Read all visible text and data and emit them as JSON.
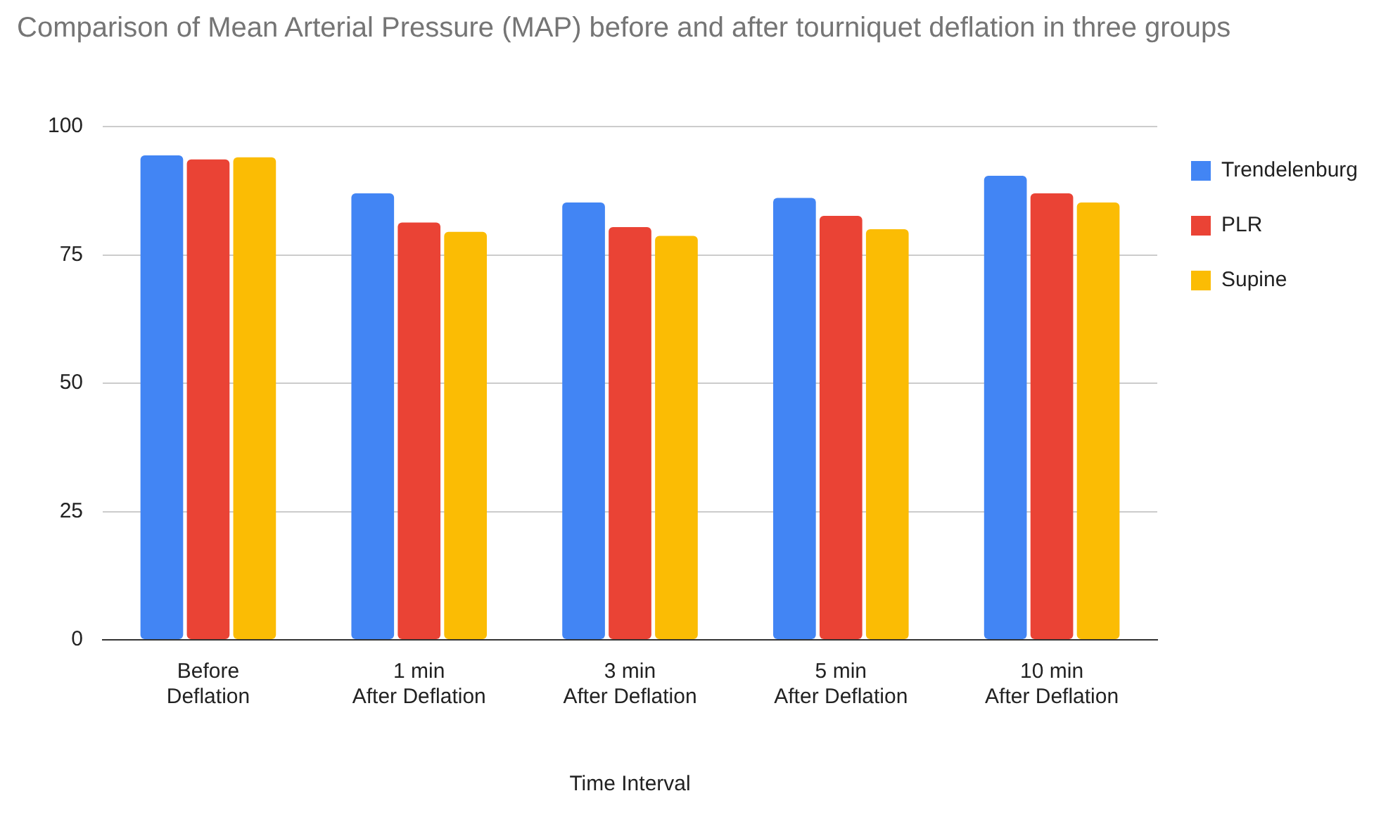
{
  "chart_data": {
    "type": "bar",
    "title": "Comparison of Mean Arterial Pressure (MAP) before and after tourniquet deflation in three groups",
    "xlabel": "Time Interval",
    "categories": [
      "Before Deflation",
      "1 min After Deflation",
      "3 min After Deflation",
      "5 min After Deflation",
      "10 min After Deflation"
    ],
    "series": [
      {
        "name": "Trendelenburg",
        "color": "#4285f4",
        "values": [
          94.4,
          87.0,
          85.2,
          86.1,
          90.4
        ]
      },
      {
        "name": "PLR",
        "color": "#ea4335",
        "values": [
          93.6,
          81.3,
          80.4,
          82.6,
          87.0
        ]
      },
      {
        "name": "Supine",
        "color": "#fbbc04",
        "values": [
          94.0,
          79.5,
          78.7,
          80.0,
          85.2
        ]
      }
    ],
    "ylim": [
      0,
      100
    ],
    "yticks": [
      0,
      25,
      50,
      75,
      100
    ],
    "grid": "y",
    "legend": "right"
  }
}
